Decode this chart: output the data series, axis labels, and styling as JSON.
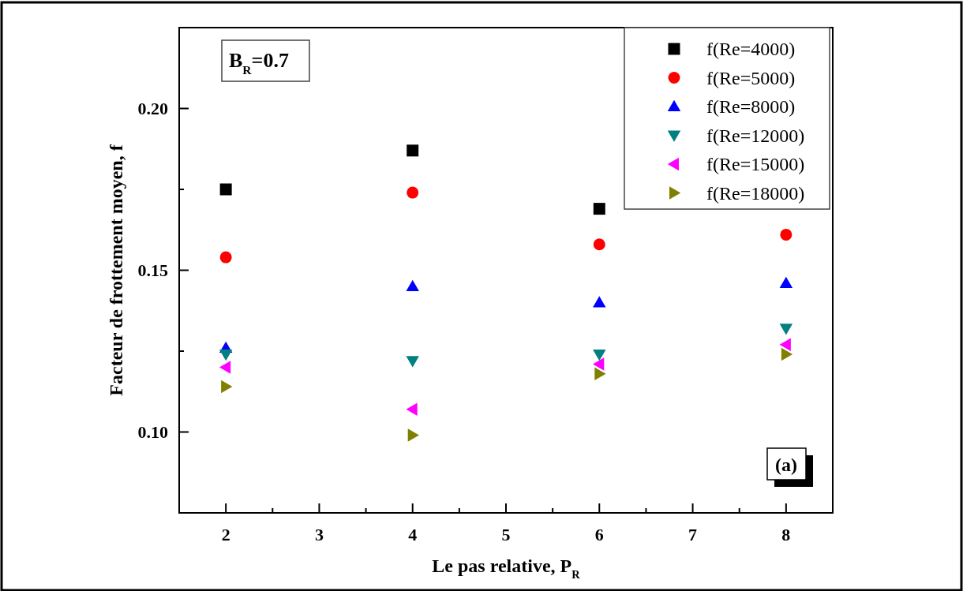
{
  "chart_data": {
    "type": "scatter",
    "xlabel": "Le pas relative, P$_{R}$",
    "ylabel": "Facteur de frottement moyen, f",
    "annotations": [
      "B$_{R}$=0.7",
      "(a)"
    ],
    "x": [
      2,
      4,
      6,
      8
    ],
    "series": [
      {
        "name": "f(Re=4000)",
        "color": "#000000",
        "marker": "square",
        "values": [
          0.175,
          0.187,
          0.169,
          null
        ]
      },
      {
        "name": "f(Re=5000)",
        "color": "#ff0000",
        "marker": "circle",
        "values": [
          0.154,
          0.174,
          0.158,
          0.161
        ]
      },
      {
        "name": "f(Re=8000)",
        "color": "#0000ff",
        "marker": "triangle",
        "values": [
          0.126,
          0.145,
          0.14,
          0.146
        ]
      },
      {
        "name": "f(Re=12000)",
        "color": "#008080",
        "marker": "triangle-down",
        "values": [
          0.124,
          0.122,
          0.124,
          0.132
        ]
      },
      {
        "name": "f(Re=15000)",
        "color": "#ff00ff",
        "marker": "triangle-left",
        "values": [
          0.12,
          0.107,
          0.121,
          0.127
        ]
      },
      {
        "name": "f(Re=18000)",
        "color": "#808000",
        "marker": "triangle-right",
        "values": [
          0.114,
          0.099,
          0.118,
          0.124
        ]
      }
    ],
    "xlim": [
      1.5,
      8.5
    ],
    "xticks": [
      2,
      {
        "value": 2.5,
        "label": null
      },
      3,
      {
        "value": 3.5,
        "label": null
      },
      4,
      {
        "value": 4.5,
        "label": null
      },
      5,
      {
        "value": 5.5,
        "label": null
      },
      6,
      {
        "value": 6.5,
        "label": null
      },
      7,
      {
        "value": 7.5,
        "label": null
      },
      8
    ],
    "ylim": [
      0.075,
      0.225
    ],
    "yticks": [
      {
        "value": 0.1,
        "label": "0.10"
      },
      {
        "value": 0.125,
        "label": null
      },
      {
        "value": 0.15,
        "label": "0.15"
      },
      {
        "value": 0.175,
        "label": null
      },
      {
        "value": 0.2,
        "label": "0.20"
      }
    ],
    "grid": false,
    "legend": "top right"
  }
}
